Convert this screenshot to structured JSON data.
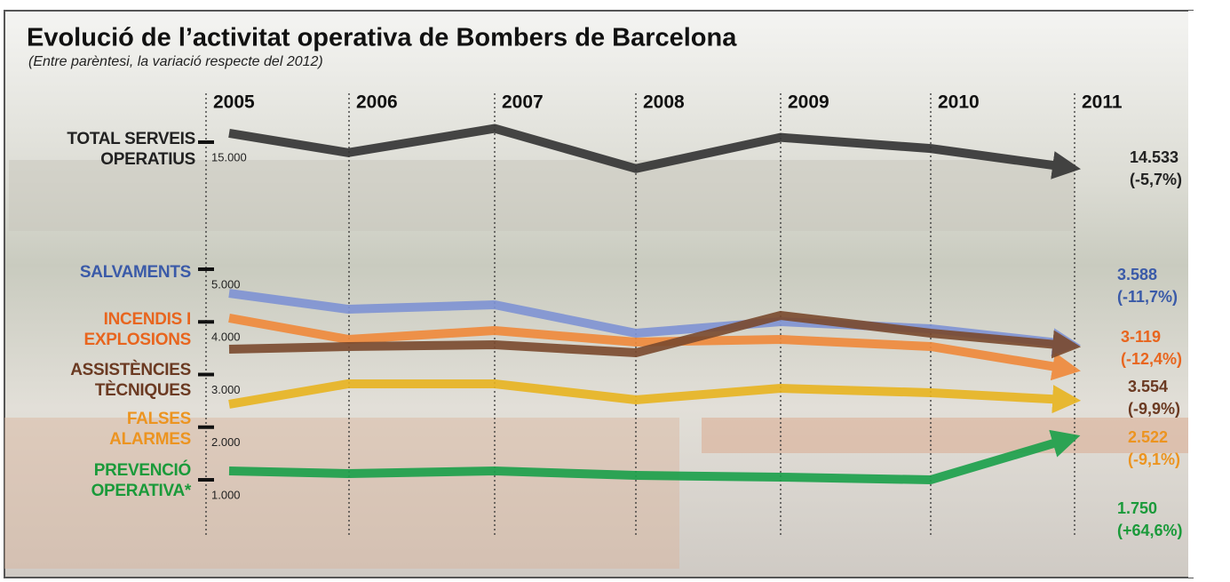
{
  "chart_data": {
    "type": "line",
    "title": "Evolució de l’activitat operativa de Bombers de Barcelona",
    "subtitle": "(Entre parèntesi, la variació respecte del 2012)",
    "categories": [
      "2005",
      "2006",
      "2007",
      "2008",
      "2009",
      "2010",
      "2011"
    ],
    "axis_break": [
      6000,
      14500
    ],
    "yticks": [
      {
        "value": 15000,
        "label": "15.000"
      },
      {
        "value": 5000,
        "label": "5.000"
      },
      {
        "value": 4000,
        "label": "4.000"
      },
      {
        "value": 3000,
        "label": "3.000"
      },
      {
        "value": 2000,
        "label": "2.000"
      },
      {
        "value": 1000,
        "label": "1.000"
      }
    ],
    "series": [
      {
        "name": "TOTAL SERVEIS OPERATIUS",
        "color": "#333333",
        "label_color": "#222222",
        "values": [
          15170,
          14800,
          15260,
          14480,
          15090,
          14880,
          14533
        ],
        "value_labels": [
          null,
          null,
          null,
          null,
          null,
          null,
          "14.533"
        ],
        "change": "(-5,7%)"
      },
      {
        "name": "SALVAMENTS",
        "color": "#7f93d4",
        "label_color": "#3a5aa8",
        "values": [
          4544,
          4240,
          4325,
          3785,
          4004,
          3870,
          3588
        ],
        "value_labels": [
          null,
          null,
          null,
          null,
          null,
          null,
          "3.588"
        ],
        "change": "(-11,7%)"
      },
      {
        "name": "INCENDIS I EXPLOSIONS",
        "color": "#f0893a",
        "label_color": "#e8651e",
        "values": [
          4072,
          3667,
          3835,
          3616,
          3667,
          3532,
          3119
        ],
        "value_labels": [
          null,
          null,
          null,
          null,
          null,
          null,
          "3-119"
        ],
        "change": "(-12,4%)"
      },
      {
        "name": "ASSISTÈNCIES TÈCNIQUES",
        "color": "#7a4a2e",
        "label_color": "#6b3a22",
        "values": [
          3481,
          3532,
          3565,
          3413,
          4122,
          3785,
          3554
        ],
        "value_labels": [
          null,
          null,
          null,
          null,
          null,
          null,
          "3.554"
        ],
        "change": "(-9,9%)"
      },
      {
        "name": "FALSES ALARMES",
        "color": "#e8b420",
        "label_color": "#ec9420",
        "values": [
          2435,
          2823,
          2823,
          2519,
          2738,
          2654,
          2522
        ],
        "value_labels": [
          null,
          null,
          null,
          null,
          null,
          null,
          "2.522"
        ],
        "change": "(-9,1%)"
      },
      {
        "name": "PREVENCIÓ OPERATIVA*",
        "color": "#1aa04a",
        "label_color": "#1a9a3a",
        "values": [
          1169,
          1118,
          1169,
          1084,
          1051,
          1000,
          1750
        ],
        "value_labels": [
          null,
          null,
          null,
          null,
          null,
          null,
          "1.750"
        ],
        "change": "(+64,6%)"
      }
    ]
  }
}
